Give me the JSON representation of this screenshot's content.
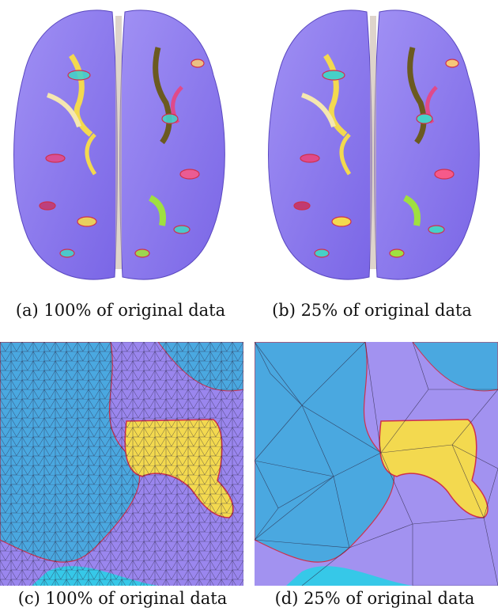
{
  "figure": {
    "panels": [
      {
        "id": "a",
        "caption": "(a) 100% of original data",
        "view": "brain-top-view"
      },
      {
        "id": "b",
        "caption": "(b) 25% of original data",
        "view": "brain-top-view"
      },
      {
        "id": "c",
        "caption": "(c) 100% of original data",
        "view": "mesh-closeup-dense"
      },
      {
        "id": "d",
        "caption": "(d) 25% of original data",
        "view": "mesh-closeup-coarse"
      }
    ],
    "colors": {
      "brain_base": "#8a78ee",
      "sulcus_blue": "#4aa8e0",
      "highlight_yellow": "#f3d94f",
      "boundary_red": "#d0304a",
      "mesh_line": "#2a2440"
    }
  }
}
